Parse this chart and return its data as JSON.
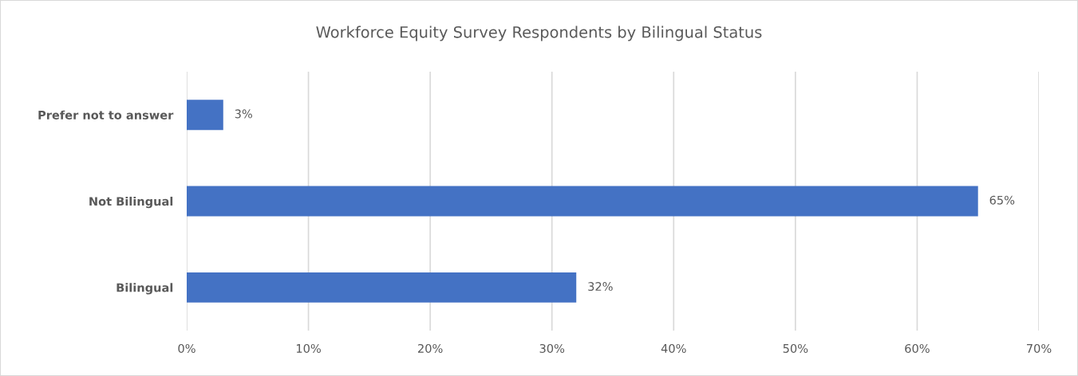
{
  "chart_data": {
    "type": "bar",
    "orientation": "horizontal",
    "title": "Workforce Equity Survey Respondents by Bilingual Status",
    "categories": [
      "Prefer not to answer",
      "Not Bilingual",
      "Bilingual"
    ],
    "values": [
      3,
      65,
      32
    ],
    "value_labels": [
      "3%",
      "65%",
      "32%"
    ],
    "color": "#4472c4",
    "xlim": [
      0,
      70
    ],
    "xticks": [
      {
        "value": 0,
        "label": "0%"
      },
      {
        "value": 10,
        "label": "10%"
      },
      {
        "value": 20,
        "label": "20%"
      },
      {
        "value": 30,
        "label": "30%"
      },
      {
        "value": 40,
        "label": "40%"
      },
      {
        "value": 50,
        "label": "50%"
      },
      {
        "value": 60,
        "label": "60%"
      },
      {
        "value": 70,
        "label": "70%"
      }
    ],
    "grid": "x"
  }
}
